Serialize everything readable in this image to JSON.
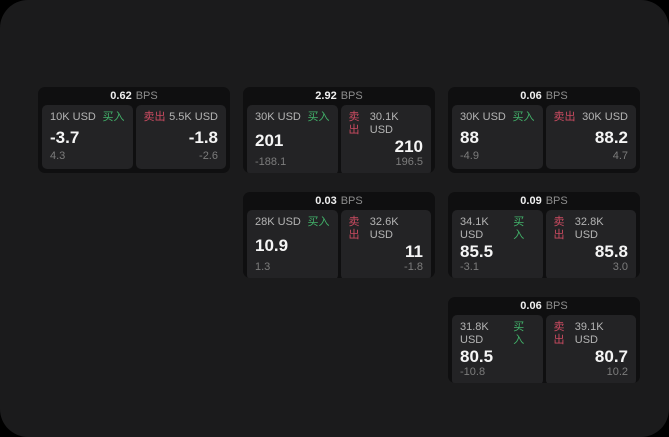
{
  "labels": {
    "unit": "BPS",
    "buy": "买入",
    "sell": "卖出"
  },
  "colors": {
    "outer_background": "#000000",
    "page_background": "#1b1b1c",
    "card_background": "#0f0f10",
    "panel_background": "#232325",
    "buy_accent": "#42b26a",
    "sell_accent": "#cb4b61"
  },
  "cards": [
    {
      "bps": "0.62",
      "col": 1,
      "row": 1,
      "buy": {
        "amount": "10K USD",
        "price": "-3.7",
        "delta": "4.3"
      },
      "sell": {
        "amount": "5.5K USD",
        "price": "-1.8",
        "delta": "-2.6"
      }
    },
    {
      "bps": "2.92",
      "col": 2,
      "row": 1,
      "buy": {
        "amount": "30K USD",
        "price": "201",
        "delta": "-188.1"
      },
      "sell": {
        "amount": "30.1K USD",
        "price": "210",
        "delta": "196.5"
      }
    },
    {
      "bps": "0.06",
      "col": 3,
      "row": 1,
      "buy": {
        "amount": "30K USD",
        "price": "88",
        "delta": "-4.9"
      },
      "sell": {
        "amount": "30K USD",
        "price": "88.2",
        "delta": "4.7"
      }
    },
    {
      "bps": "0.03",
      "col": 2,
      "row": 2,
      "buy": {
        "amount": "28K USD",
        "price": "10.9",
        "delta": "1.3"
      },
      "sell": {
        "amount": "32.6K USD",
        "price": "11",
        "delta": "-1.8"
      }
    },
    {
      "bps": "0.09",
      "col": 3,
      "row": 2,
      "buy": {
        "amount": "34.1K USD",
        "price": "85.5",
        "delta": "-3.1"
      },
      "sell": {
        "amount": "32.8K USD",
        "price": "85.8",
        "delta": "3.0"
      }
    },
    {
      "bps": "0.06",
      "col": 3,
      "row": 3,
      "buy": {
        "amount": "31.8K USD",
        "price": "80.5",
        "delta": "-10.8"
      },
      "sell": {
        "amount": "39.1K USD",
        "price": "80.7",
        "delta": "10.2"
      }
    }
  ]
}
